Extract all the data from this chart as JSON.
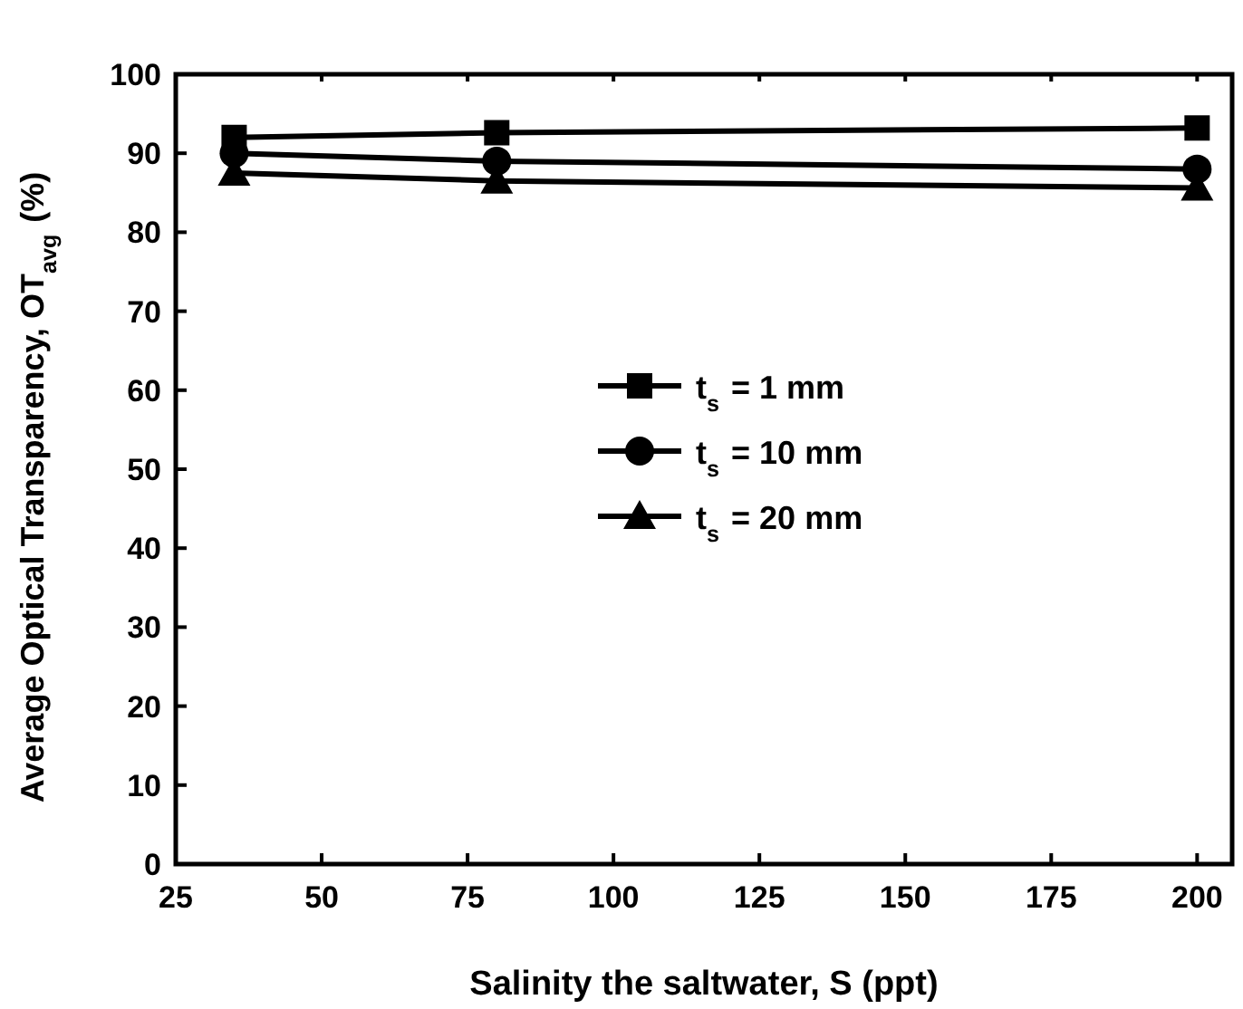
{
  "chart_data": {
    "type": "line",
    "xlabel": "Salinity the saltwater, S (ppt)",
    "ylabel": "Average Optical Transparency, OT$_{avg}$ (%)",
    "x": [
      35,
      80,
      200
    ],
    "xlim": [
      25,
      206
    ],
    "xticks": [
      25,
      50,
      75,
      100,
      125,
      150,
      175,
      200
    ],
    "ylim": [
      0,
      100
    ],
    "yticks": [
      0,
      10,
      20,
      30,
      40,
      50,
      60,
      70,
      80,
      90,
      100
    ],
    "legend": "center",
    "grid": false,
    "series": [
      {
        "name": "t$_{s}$ = 1 mm",
        "color": "#000000",
        "marker": "square",
        "values": [
          92.0,
          92.6,
          93.2
        ]
      },
      {
        "name": "t$_{s}$ = 10 mm",
        "color": "#000000",
        "marker": "circle",
        "values": [
          90.0,
          89.0,
          88.0
        ]
      },
      {
        "name": "t$_{s}$ = 20 mm",
        "color": "#000000",
        "marker": "triangle",
        "values": [
          87.5,
          86.5,
          85.6
        ]
      }
    ]
  }
}
